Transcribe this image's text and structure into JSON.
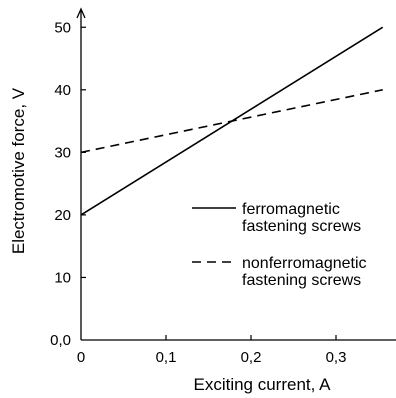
{
  "chart_data": {
    "type": "line",
    "title": "",
    "xlabel": "Exciting current, A",
    "ylabel": "Electromotive force, V",
    "xlim": [
      0,
      0.37
    ],
    "ylim": [
      0,
      52
    ],
    "x_ticks": [
      0,
      0.1,
      0.2,
      0.3
    ],
    "x_tick_labels": [
      "0",
      "0,1",
      "0,2",
      "0,3"
    ],
    "y_ticks": [
      0,
      10,
      20,
      30,
      40,
      50
    ],
    "y_tick_labels": [
      "0,0",
      "10",
      "20",
      "30",
      "40",
      "50"
    ],
    "grid": false,
    "legend_position": "right",
    "series": [
      {
        "legend_lines": [
          "ferromagnetic",
          "fastening screws"
        ],
        "line_style": "solid",
        "x": [
          0,
          0.355
        ],
        "y": [
          20,
          50
        ]
      },
      {
        "legend_lines": [
          "nonferromagnetic",
          "fastening screws"
        ],
        "line_style": "dashed",
        "x": [
          0,
          0.355
        ],
        "y": [
          30,
          40
        ]
      }
    ],
    "colors": {
      "line": "#000000",
      "background": "#ffffff"
    }
  }
}
